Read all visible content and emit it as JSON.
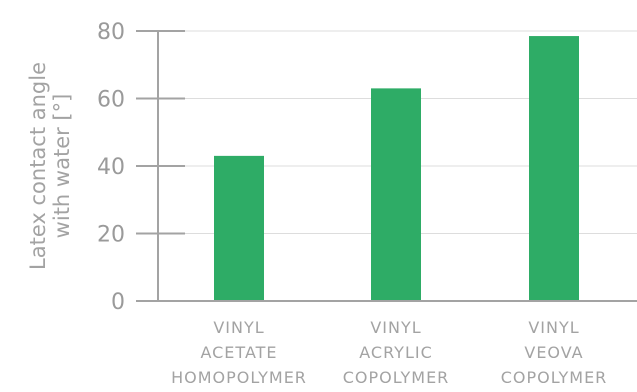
{
  "chart_data": {
    "type": "bar",
    "ylabel_lines": [
      "Latex contact angle",
      "with water [°]"
    ],
    "ylim": [
      0,
      80
    ],
    "yticks": [
      0,
      20,
      40,
      60,
      80
    ],
    "grid": true,
    "categories": [
      [
        "VINYL",
        "ACETATE",
        "HOMOPOLYMER"
      ],
      [
        "VINYL",
        "ACRYLIC",
        "COPOLYMER"
      ],
      [
        "VINYL",
        "VEOVA",
        "COPOLYMER"
      ]
    ],
    "values": [
      43,
      63,
      78.5
    ],
    "colors": {
      "bar": "#2eac66",
      "axis": "#a3a3a3",
      "grid": "#dddddd",
      "tick_text": "#9a9a9a",
      "label_text": "#a3a3a3"
    }
  }
}
